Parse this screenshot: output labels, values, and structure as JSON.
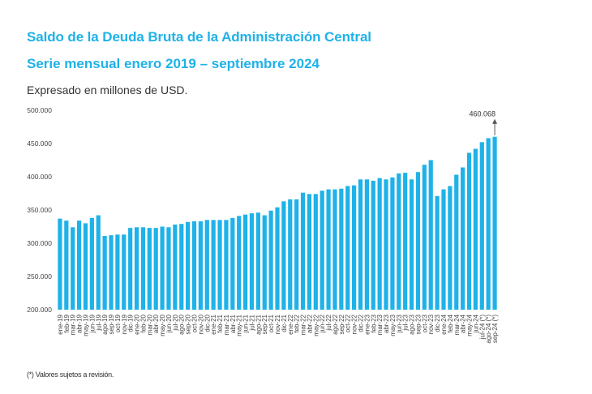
{
  "header": {
    "title": "Saldo de la Deuda Bruta de la Administración Central",
    "subtitle": "Serie mensual enero 2019 – septiembre 2024",
    "units": "Expresado en millones de USD."
  },
  "footnote": "(*) Valores sujetos a revisión.",
  "colors": {
    "title": "#1fb2e8",
    "bar": "#1fb2e8",
    "text": "#333333"
  },
  "chart_data": {
    "type": "bar",
    "title": "Saldo de la Deuda Bruta de la Administración Central",
    "subtitle": "Serie mensual enero 2019 – septiembre 2024",
    "xlabel": "",
    "ylabel": "Millones de USD",
    "ylim": [
      200000,
      500000
    ],
    "yticks": [
      200000,
      250000,
      300000,
      350000,
      400000,
      450000,
      500000
    ],
    "ytick_labels": [
      "200.000",
      "250.000",
      "300.000",
      "350.000",
      "400.000",
      "450.000",
      "500.000"
    ],
    "grid": false,
    "legend": "none",
    "categories": [
      "ene-19",
      "feb-19",
      "mar-19",
      "abr-19",
      "may-19",
      "jun-19",
      "jul-19",
      "ago-19",
      "sep-19",
      "oct-19",
      "nov-19",
      "dic-19",
      "ene-20",
      "feb-20",
      "mar-20",
      "abr-20",
      "may-20",
      "jun-20",
      "jul-20",
      "ago-20",
      "sep-20",
      "oct-20",
      "nov-20",
      "dic-20",
      "ene-21",
      "feb-21",
      "mar-21",
      "abr-21",
      "may-21",
      "jun-21",
      "jul-21",
      "ago-21",
      "sep-21",
      "oct-21",
      "nov-21",
      "dic-21",
      "ene-22",
      "feb-22",
      "mar-22",
      "abr-22",
      "may-22",
      "jun-22",
      "jul-22",
      "ago-22",
      "sep-22",
      "oct-22",
      "nov-22",
      "dic-22",
      "ene-23",
      "feb-23",
      "mar-23",
      "abr-23",
      "may-23",
      "jun-23",
      "jul-23",
      "ago-23",
      "sep-23",
      "oct-23",
      "nov-23",
      "dic-23",
      "ene-24",
      "feb-24",
      "mar-24",
      "abr-24",
      "may-24",
      "jun-24",
      "jul-24 (*)",
      "ago-24 (*)",
      "sep-24 (*)"
    ],
    "values": [
      337000,
      334000,
      324000,
      334000,
      330000,
      338000,
      342000,
      311000,
      312000,
      313000,
      313000,
      323000,
      324000,
      324000,
      323000,
      323000,
      325000,
      324000,
      328000,
      329000,
      332000,
      333000,
      333000,
      335000,
      335000,
      335000,
      335000,
      338000,
      341000,
      343000,
      345000,
      346000,
      342000,
      349000,
      354000,
      363000,
      366000,
      366000,
      376000,
      374000,
      374000,
      379000,
      381000,
      381000,
      382000,
      386000,
      387000,
      396000,
      396000,
      394000,
      398000,
      396000,
      399000,
      405000,
      406000,
      396000,
      407000,
      418000,
      425000,
      371000,
      381000,
      386000,
      403000,
      414000,
      436000,
      442000,
      452000,
      458000,
      460068
    ],
    "annotations": [
      {
        "category": "sep-24 (*)",
        "text": "460.068",
        "arrow": "up"
      }
    ]
  }
}
